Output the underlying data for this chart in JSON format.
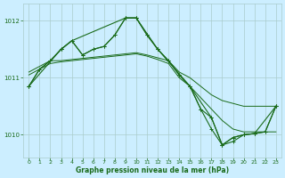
{
  "title": "Graphe pression niveau de la mer (hPa)",
  "background_color": "#cceeff",
  "grid_color": "#aacccc",
  "line_color": "#1a6b1a",
  "ylim": [
    1009.6,
    1012.3
  ],
  "yticks": [
    1010,
    1011,
    1012
  ],
  "xticks": [
    0,
    1,
    2,
    3,
    4,
    5,
    6,
    7,
    8,
    9,
    10,
    11,
    12,
    13,
    14,
    15,
    16,
    17,
    18,
    19,
    20,
    21,
    22,
    23
  ],
  "series1_x": [
    0,
    1,
    2,
    3,
    4,
    5,
    6,
    7,
    8,
    9,
    10,
    11,
    12,
    13,
    14,
    15,
    16,
    17,
    18,
    19,
    20,
    21,
    22,
    23
  ],
  "series1_y": [
    1011.1,
    1011.2,
    1011.3,
    1011.3,
    1011.32,
    1011.34,
    1011.36,
    1011.38,
    1011.4,
    1011.42,
    1011.44,
    1011.4,
    1011.35,
    1011.3,
    1011.1,
    1011.0,
    1010.85,
    1010.7,
    1010.6,
    1010.55,
    1010.5,
    1010.5,
    1010.5,
    1010.5
  ],
  "series2_x": [
    0,
    1,
    2,
    3,
    4,
    5,
    6,
    7,
    8,
    9,
    10,
    11,
    12,
    13,
    14,
    15,
    16,
    17,
    18,
    19,
    20,
    21,
    22,
    23
  ],
  "series2_y": [
    1011.05,
    1011.15,
    1011.25,
    1011.28,
    1011.3,
    1011.32,
    1011.34,
    1011.36,
    1011.38,
    1011.4,
    1011.42,
    1011.38,
    1011.32,
    1011.25,
    1011.0,
    1010.85,
    1010.65,
    1010.45,
    1010.25,
    1010.1,
    1010.05,
    1010.05,
    1010.05,
    1010.05
  ],
  "series3_x": [
    0,
    1,
    2,
    3,
    4,
    5,
    6,
    7,
    8,
    9,
    10,
    11,
    12,
    13,
    14,
    15,
    16,
    17,
    18,
    19,
    20,
    21,
    22,
    23
  ],
  "series3_y": [
    1010.85,
    1011.15,
    1011.3,
    1011.5,
    1011.65,
    1011.4,
    1011.5,
    1011.55,
    1011.75,
    1012.05,
    1012.05,
    1011.75,
    1011.5,
    1011.3,
    1011.05,
    1010.85,
    1010.45,
    1010.1,
    1009.82,
    1009.88,
    1010.0,
    1010.02,
    1010.05,
    1010.5
  ],
  "series4_x": [
    0,
    1,
    2,
    3,
    4,
    5,
    6,
    7,
    8,
    9,
    10,
    11,
    12,
    13,
    14,
    15,
    16,
    17,
    18,
    19,
    20,
    21,
    22,
    23
  ],
  "series4_y": [
    1010.85,
    1011.15,
    1011.3,
    1011.5,
    1011.65,
    1011.4,
    1011.5,
    1011.55,
    1011.75,
    1012.05,
    1012.05,
    1011.75,
    1011.5,
    1011.3,
    1011.05,
    1010.85,
    1010.45,
    1010.3,
    1009.82,
    1009.95,
    1010.0,
    1010.02,
    1010.05,
    1010.5
  ],
  "series5_x": [
    0,
    3,
    4,
    9,
    10,
    12,
    15,
    17,
    18,
    19,
    20,
    21,
    23
  ],
  "series5_y": [
    1010.85,
    1011.5,
    1011.65,
    1012.05,
    1012.05,
    1011.5,
    1010.85,
    1010.3,
    1009.82,
    1009.95,
    1010.0,
    1010.02,
    1010.5
  ]
}
